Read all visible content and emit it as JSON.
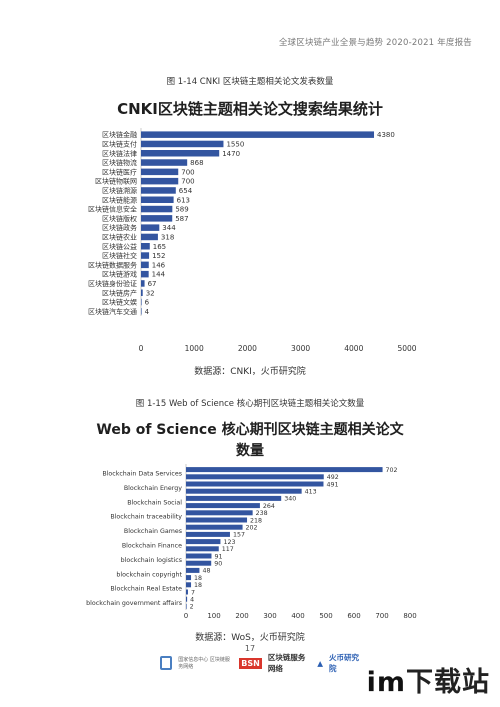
{
  "header": {
    "text": "全球区块链产业全景与趋势 2020-2021 年度报告"
  },
  "figure1": {
    "caption": "图 1-14 CNKI 区块链主题相关论文发表数量",
    "source": "数据源：CNKI，火币研究院"
  },
  "figure2": {
    "caption": "图 1-15 Web of Science 核心期刊区块链主题相关论文数量",
    "source": "数据源：WoS，火币研究院"
  },
  "page_number": "17",
  "footer": {
    "logo1": "国家信息中心 区块链服务网络",
    "logo2_badge": "BSN",
    "logo2_text": "区块链服务网络",
    "logo3": "火币研究院"
  },
  "watermark": {
    "a": "im",
    "b": "下载站"
  },
  "colors": {
    "bar": "#3355a0",
    "axis": "#cfcfcf",
    "text": "#333333"
  },
  "chart_data": [
    {
      "type": "bar",
      "orientation": "horizontal",
      "title": "CNKI区块链主题相关论文搜索结果统计",
      "categories": [
        "区块链金融",
        "区块链支付",
        "区块链法律",
        "区块链物流",
        "区块链医疗",
        "区块链物联网",
        "区块链溯源",
        "区块链能源",
        "区块链信息安全",
        "区块链版权",
        "区块链政务",
        "区块链农业",
        "区块链公益",
        "区块链社交",
        "区块链数据服务",
        "区块链游戏",
        "区块链身份验证",
        "区块链房产",
        "区块链文娱",
        "区块链汽车交通"
      ],
      "values": [
        4380,
        1550,
        1470,
        868,
        700,
        700,
        654,
        613,
        589,
        587,
        344,
        318,
        165,
        152,
        146,
        144,
        67,
        32,
        6,
        4
      ],
      "xlim": [
        0,
        5000
      ],
      "xticks": [
        "0",
        "1000",
        "2000",
        "3000",
        "4000",
        "5000"
      ],
      "grid": false
    },
    {
      "type": "bar",
      "orientation": "horizontal",
      "title_line1": "Web of Science 核心期刊区块链主题相关论文",
      "title_line2": "数量",
      "labeled_categories": [
        "Blockchain Data Services",
        "Blockchain Energy",
        "Blockchain Social",
        "Blockchain traceability",
        "Blockchain Games",
        "Blockchain Finance",
        "blockchain logistics",
        "blockchain copyright",
        "Blockchain Real Estate",
        "blockchain government affairs"
      ],
      "values": [
        702,
        492,
        491,
        413,
        340,
        264,
        238,
        218,
        202,
        157,
        123,
        117,
        91,
        90,
        48,
        18,
        18,
        7,
        4,
        2
      ],
      "xlim": [
        0,
        800
      ],
      "xticks": [
        "0",
        "100",
        "200",
        "300",
        "400",
        "500",
        "600",
        "700",
        "800"
      ],
      "grid": false
    }
  ]
}
